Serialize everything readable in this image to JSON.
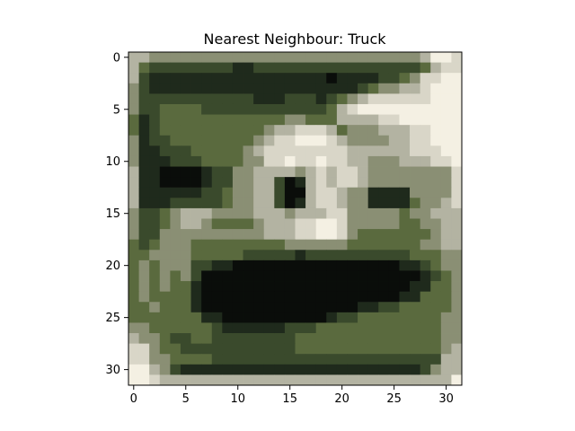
{
  "chart_data": {
    "type": "heatmap",
    "title": "Nearest Neighbour: Truck",
    "xlabel": "",
    "ylabel": "",
    "xlim": [
      -0.5,
      31.5
    ],
    "ylim": [
      31.5,
      -0.5
    ],
    "xticks": [
      0,
      5,
      10,
      15,
      20,
      25,
      30
    ],
    "yticks": [
      0,
      5,
      10,
      15,
      20,
      25,
      30
    ],
    "grid": false,
    "image_size": [
      32,
      32
    ],
    "image_palette": [
      "#0a0d0a",
      "#1f2a1c",
      "#3a4a2c",
      "#5a6a3e",
      "#8a8f74",
      "#b3b3a2",
      "#d9d6c8",
      "#f4f0e3"
    ],
    "image_rows": [
      "55444444444444444444444444445776",
      "53222222221122222222222222223566",
      "52111111111111111110111122346677",
      "42111111111111111111112344556777",
      "42222222222211122212345666666777",
      "42233332222222222223567777777777",
      "31233333333333344333555566777777",
      "31233333333334556665344455566777",
      "41223333333345667776544445566777",
      "41122233333456666666655555566677",
      "41112223333446676676655444555667",
      "51100001224455554565665444444446",
      "51100001224455201565665444444446",
      "51111112234455200566544111144446",
      "51112222234455201566544111134456",
      "42234555444455545556644444344555",
      "42234554333345556677644444334455",
      "42244444444445556677643333333455",
      "32344433333333344444433333334455",
      "33444433333222221222222222233344",
      "34344422110000000000000000112344",
      "34343420000000000000000000001234",
      "34343310000000000000000000011334",
      "34333310000000000000000000113334",
      "33433310000000000000001122333334",
      "33333331100000000001223333333344",
      "44333333211111122233333333333344",
      "54432233222222223333333333333344",
      "66433222222222223333333333333345",
      "66443333222222222222222222222255",
      "77542111111111111111111111112455",
      "77655555555555555555555555555557"
    ]
  }
}
